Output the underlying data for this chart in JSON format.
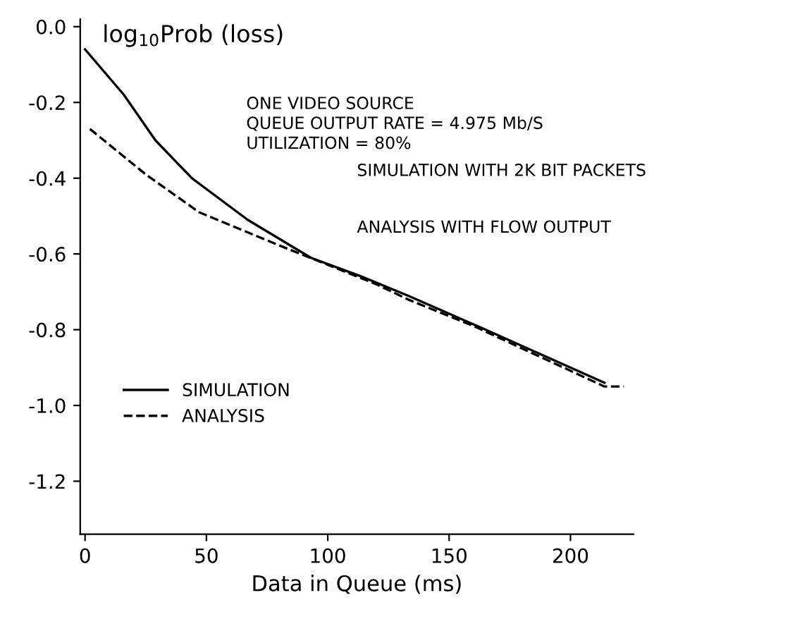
{
  "chart_data": {
    "type": "line",
    "ylabel": "log$_{10}$Prob (loss)",
    "xlabel": "Data in Queue (ms)",
    "xlim": [
      -2,
      226
    ],
    "xticks": [
      0,
      50,
      100,
      150,
      200
    ],
    "ylim": [
      -1.34,
      0.02
    ],
    "yticks": [
      {
        "value": 0,
        "label": "0.0"
      },
      -0.2,
      -0.4,
      -0.6,
      -0.8,
      {
        "value": -1,
        "label": "-1.0"
      },
      -1.2
    ],
    "grid": false,
    "legend": "bottom left",
    "marker": "none",
    "annotations": [
      "ONE VIDEO SOURCE\nQUEUE OUTPUT RATE = 4.975 Mb/S\nUTILIZATION = 80%",
      "SIMULATION WITH 2K BIT PACKETS",
      "ANALYSIS WITH FLOW OUTPUT"
    ],
    "series": [
      {
        "name": "SIMULATION",
        "color": "#000000",
        "line_style": "solid",
        "x": [
          0,
          16,
          29,
          44,
          67,
          93,
          114,
          133,
          165,
          214
        ],
        "values": [
          -0.06,
          -0.18,
          -0.3,
          -0.4,
          -0.51,
          -0.61,
          -0.66,
          -0.71,
          -0.8,
          -0.94
        ]
      },
      {
        "name": "ANALYSIS",
        "color": "#000000",
        "line_style": "dashed",
        "x": [
          2,
          25,
          47,
          81,
          120,
          133,
          160,
          214,
          222
        ],
        "values": [
          -0.27,
          -0.39,
          -0.49,
          -0.58,
          -0.68,
          -0.72,
          -0.79,
          -0.95,
          -0.95
        ]
      }
    ]
  }
}
